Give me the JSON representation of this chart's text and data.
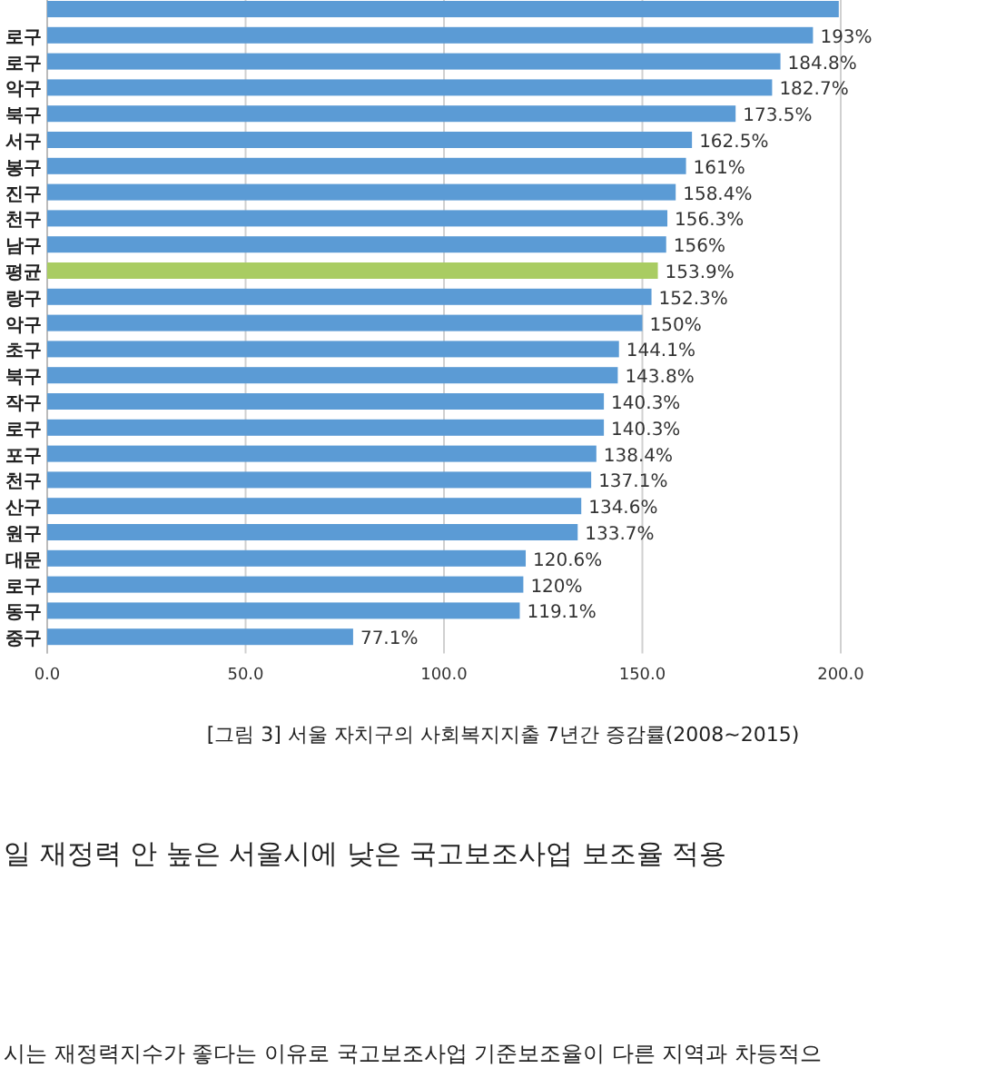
{
  "chart_data": {
    "type": "bar",
    "orientation": "horizontal",
    "title": "[그림 3] 서울 자치구의 사회복지지출 7년간 증감률(2008~2015)",
    "annotations": [
      "일 재정력 안 높은 서울시에 낮은 국고보조사업 보조율 적용",
      "시는 재정력지수가 좋다는 이유로 국고보조사업 기준보조율이 다른 지역과 차등적으"
    ],
    "categories": [
      null,
      "로구",
      "로구",
      "악구",
      "북구",
      "서구",
      "봉구",
      "진구",
      "천구",
      "남구",
      "평균",
      "랑구",
      "악구",
      "초구",
      "북구",
      "작구",
      "로구",
      "포구",
      "천구",
      "산구",
      "원구",
      "대문",
      "로구",
      "동구",
      "중구"
    ],
    "values": [
      199.5,
      193,
      184.8,
      182.7,
      173.5,
      162.5,
      161,
      158.4,
      156.3,
      156,
      153.9,
      152.3,
      150,
      144.1,
      143.8,
      140.3,
      140.3,
      138.4,
      137.1,
      134.6,
      133.7,
      120.6,
      120,
      119.1,
      77.1
    ],
    "value_labels": [
      null,
      "193%",
      "184.8%",
      "182.7%",
      "173.5%",
      "162.5%",
      "161%",
      "158.4%",
      "156.3%",
      "156%",
      "153.9%",
      "152.3%",
      "150%",
      "144.1%",
      "143.8%",
      "140.3%",
      "140.3%",
      "138.4%",
      "137.1%",
      "134.6%",
      "133.7%",
      "120.6%",
      "120%",
      "119.1%",
      "77.1%"
    ],
    "colors": [
      "#5b9bd5",
      "#5b9bd5",
      "#5b9bd5",
      "#5b9bd5",
      "#5b9bd5",
      "#5b9bd5",
      "#5b9bd5",
      "#5b9bd5",
      "#5b9bd5",
      "#5b9bd5",
      "#a9cc62",
      "#5b9bd5",
      "#5b9bd5",
      "#5b9bd5",
      "#5b9bd5",
      "#5b9bd5",
      "#5b9bd5",
      "#5b9bd5",
      "#5b9bd5",
      "#5b9bd5",
      "#5b9bd5",
      "#5b9bd5",
      "#5b9bd5",
      "#5b9bd5",
      "#5b9bd5"
    ],
    "xlim": [
      0,
      200
    ],
    "xticks": [
      {
        "value": 0,
        "label": "0.0"
      },
      {
        "value": 50,
        "label": "50.0"
      },
      {
        "value": 100,
        "label": "100.0"
      },
      {
        "value": 150,
        "label": "150.0"
      },
      {
        "value": 200,
        "label": "200.0"
      }
    ],
    "grid": "x"
  }
}
